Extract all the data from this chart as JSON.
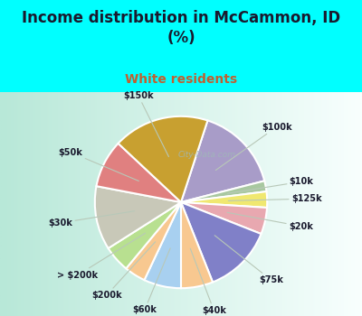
{
  "title": "Income distribution in McCammon, ID\n(%)",
  "subtitle": "White residents",
  "title_color": "#1a1a2e",
  "subtitle_color": "#c06030",
  "background_color": "#00FFFF",
  "chart_bg_left": "#b8e8d8",
  "chart_bg_right": "#f8fffe",
  "labels": [
    "$100k",
    "$10k",
    "$125k",
    "$20k",
    "$75k",
    "$40k",
    "$60k",
    "$200k",
    "> $200k",
    "$30k",
    "$50k",
    "$150k"
  ],
  "values": [
    16,
    2,
    3,
    5,
    13,
    6,
    7,
    4,
    5,
    12,
    9,
    18
  ],
  "colors": [
    "#a89cc8",
    "#a8c8a0",
    "#f0e870",
    "#e8a8b0",
    "#8080c8",
    "#f8c890",
    "#a8d0f0",
    "#f8c890",
    "#b8e090",
    "#c8c8b8",
    "#e08080",
    "#c8a030"
  ],
  "watermark": "City-Data.com",
  "startangle": 72,
  "label_r": 1.28,
  "line_color": "#b8c8b8"
}
